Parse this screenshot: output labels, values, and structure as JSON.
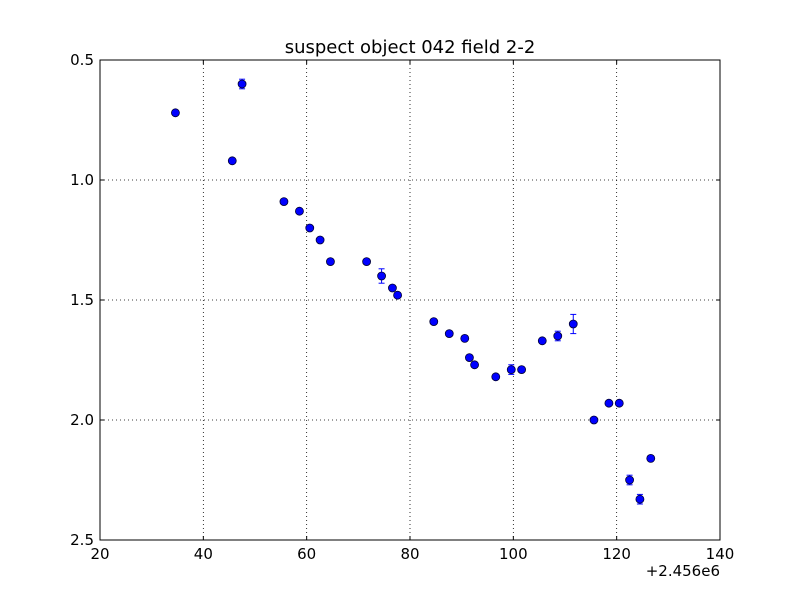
{
  "chart_data": {
    "type": "scatter",
    "title": "suspect object 042 field 2-2",
    "xlabel": "",
    "ylabel": "",
    "x_offset_label": "+2.456e6",
    "xlim": [
      20,
      140
    ],
    "ylim": [
      2.5,
      0.5
    ],
    "y_inverted": true,
    "xticks": [
      20,
      40,
      60,
      80,
      100,
      120,
      140
    ],
    "xtick_labels": [
      "20",
      "40",
      "60",
      "80",
      "100",
      "120",
      "140"
    ],
    "yticks": [
      0.5,
      1.0,
      1.5,
      2.0,
      2.5
    ],
    "ytick_labels": [
      "0.5",
      "1.0",
      "1.5",
      "2.0",
      "2.5"
    ],
    "grid": true,
    "marker_color": "#0000ff",
    "points": [
      {
        "x": 34.6,
        "y": 0.72,
        "err": 0.01
      },
      {
        "x": 45.6,
        "y": 0.92,
        "err": 0.01
      },
      {
        "x": 47.5,
        "y": 0.6,
        "err": 0.02
      },
      {
        "x": 55.6,
        "y": 1.09,
        "err": 0.01
      },
      {
        "x": 58.6,
        "y": 1.13,
        "err": 0.01
      },
      {
        "x": 60.6,
        "y": 1.2,
        "err": 0.01
      },
      {
        "x": 62.6,
        "y": 1.25,
        "err": 0.01
      },
      {
        "x": 64.6,
        "y": 1.34,
        "err": 0.01
      },
      {
        "x": 71.6,
        "y": 1.34,
        "err": 0.01
      },
      {
        "x": 74.5,
        "y": 1.4,
        "err": 0.03
      },
      {
        "x": 76.6,
        "y": 1.45,
        "err": 0.01
      },
      {
        "x": 77.6,
        "y": 1.48,
        "err": 0.01
      },
      {
        "x": 84.6,
        "y": 1.59,
        "err": 0.01
      },
      {
        "x": 87.6,
        "y": 1.64,
        "err": 0.01
      },
      {
        "x": 90.6,
        "y": 1.66,
        "err": 0.01
      },
      {
        "x": 91.5,
        "y": 1.74,
        "err": 0.01
      },
      {
        "x": 92.5,
        "y": 1.77,
        "err": 0.01
      },
      {
        "x": 96.6,
        "y": 1.82,
        "err": 0.01
      },
      {
        "x": 99.6,
        "y": 1.79,
        "err": 0.02
      },
      {
        "x": 101.6,
        "y": 1.79,
        "err": 0.01
      },
      {
        "x": 105.6,
        "y": 1.67,
        "err": 0.01
      },
      {
        "x": 108.6,
        "y": 1.65,
        "err": 0.02
      },
      {
        "x": 111.6,
        "y": 1.6,
        "err": 0.04
      },
      {
        "x": 115.6,
        "y": 2.0,
        "err": 0.01
      },
      {
        "x": 118.5,
        "y": 1.93,
        "err": 0.01
      },
      {
        "x": 120.5,
        "y": 1.93,
        "err": 0.01
      },
      {
        "x": 122.5,
        "y": 2.25,
        "err": 0.02
      },
      {
        "x": 124.5,
        "y": 2.33,
        "err": 0.02
      },
      {
        "x": 126.6,
        "y": 2.16,
        "err": 0.01
      }
    ]
  }
}
